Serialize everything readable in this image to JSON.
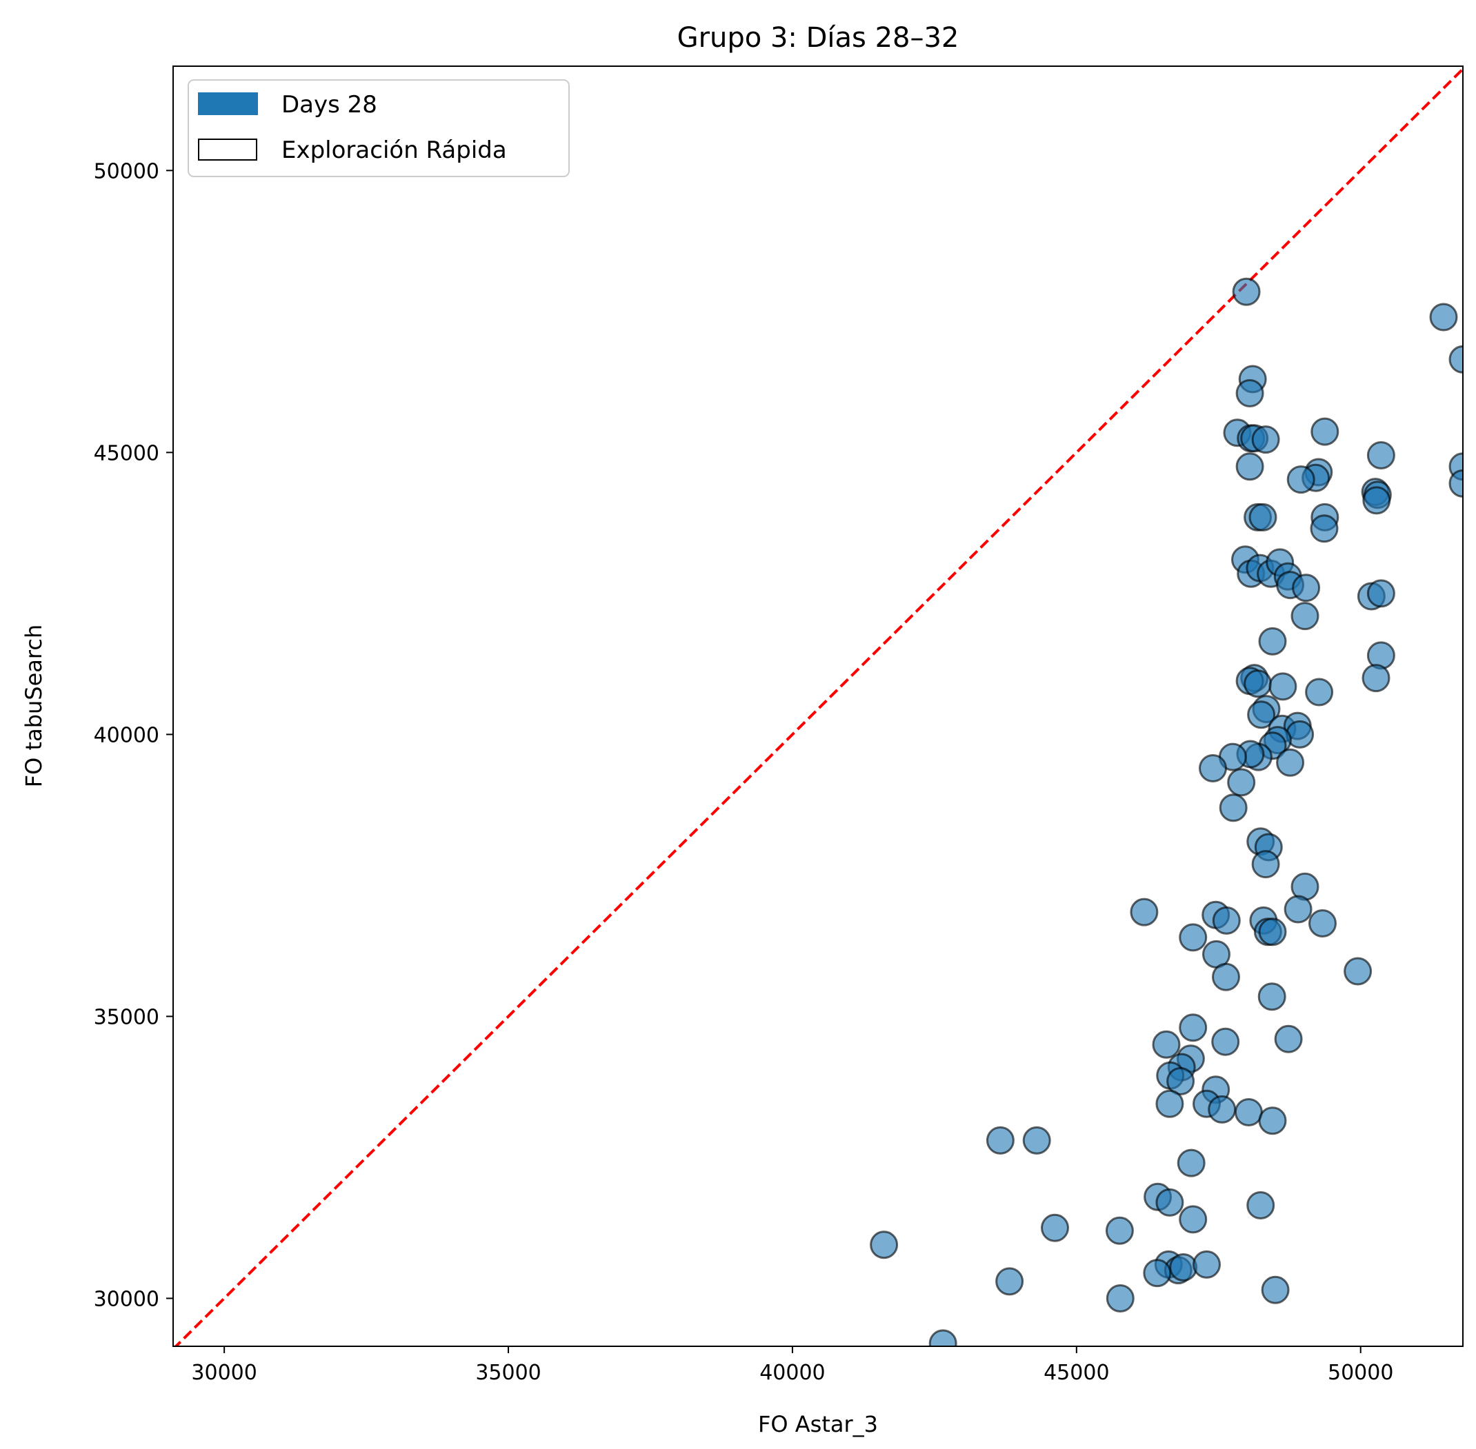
{
  "chart_data": {
    "type": "scatter",
    "title": "Grupo 3: Días 28–32",
    "xlabel": "FO Astar_3",
    "ylabel": "FO tabuSearch",
    "xlim": [
      29100,
      51800
    ],
    "ylim": [
      29150,
      51850
    ],
    "xticks": [
      30000,
      35000,
      40000,
      45000,
      50000
    ],
    "yticks": [
      30000,
      35000,
      40000,
      45000,
      50000
    ],
    "grid": false,
    "legend": {
      "placement": "top-left",
      "entries": [
        {
          "label": "Days 28",
          "style": "filled",
          "color": "#1f77b4"
        },
        {
          "label": "Exploración Rápida",
          "style": "outline",
          "color": "#000000"
        }
      ]
    },
    "reference_line": {
      "style": "dashed",
      "color": "#ff0000",
      "from": [
        29100,
        29100
      ],
      "to": [
        51800,
        51800
      ]
    },
    "series": [
      {
        "name": "Days 28",
        "color": "#1f77b4",
        "points": [
          [
            47990,
            47850
          ],
          [
            51460,
            47400
          ],
          [
            51800,
            46650
          ],
          [
            48100,
            46300
          ],
          [
            48050,
            46050
          ],
          [
            47830,
            45350
          ],
          [
            48070,
            45250
          ],
          [
            48130,
            45250
          ],
          [
            48330,
            45230
          ],
          [
            49370,
            45370
          ],
          [
            48050,
            44750
          ],
          [
            49260,
            44650
          ],
          [
            49210,
            44550
          ],
          [
            48950,
            44520
          ],
          [
            50360,
            44950
          ],
          [
            51800,
            44750
          ],
          [
            51800,
            44450
          ],
          [
            50260,
            44300
          ],
          [
            50300,
            44250
          ],
          [
            50280,
            44150
          ],
          [
            48190,
            43850
          ],
          [
            48280,
            43850
          ],
          [
            49370,
            43850
          ],
          [
            49360,
            43650
          ],
          [
            47970,
            43100
          ],
          [
            48070,
            42850
          ],
          [
            48230,
            42950
          ],
          [
            48420,
            42850
          ],
          [
            48580,
            43050
          ],
          [
            48720,
            42800
          ],
          [
            48760,
            42650
          ],
          [
            49040,
            42600
          ],
          [
            49020,
            42100
          ],
          [
            50190,
            42450
          ],
          [
            50360,
            42500
          ],
          [
            48450,
            41650
          ],
          [
            50360,
            41400
          ],
          [
            50270,
            41000
          ],
          [
            48130,
            41000
          ],
          [
            48050,
            40950
          ],
          [
            48190,
            40900
          ],
          [
            48340,
            40450
          ],
          [
            48250,
            40350
          ],
          [
            48630,
            40850
          ],
          [
            49270,
            40750
          ],
          [
            48620,
            40100
          ],
          [
            48890,
            40150
          ],
          [
            48930,
            40000
          ],
          [
            48540,
            39900
          ],
          [
            48450,
            39800
          ],
          [
            48760,
            39500
          ],
          [
            48200,
            39600
          ],
          [
            48060,
            39650
          ],
          [
            47750,
            39600
          ],
          [
            47400,
            39400
          ],
          [
            47900,
            39150
          ],
          [
            47760,
            38700
          ],
          [
            48240,
            38100
          ],
          [
            48380,
            38000
          ],
          [
            48330,
            37700
          ],
          [
            46190,
            36850
          ],
          [
            47450,
            36800
          ],
          [
            47640,
            36700
          ],
          [
            48290,
            36700
          ],
          [
            48370,
            36500
          ],
          [
            48450,
            36500
          ],
          [
            49020,
            37300
          ],
          [
            48900,
            36900
          ],
          [
            49330,
            36650
          ],
          [
            47050,
            36400
          ],
          [
            47460,
            36100
          ],
          [
            47630,
            35700
          ],
          [
            49950,
            35800
          ],
          [
            48440,
            35350
          ],
          [
            47050,
            34800
          ],
          [
            47620,
            34550
          ],
          [
            48730,
            34600
          ],
          [
            46580,
            34500
          ],
          [
            47010,
            34250
          ],
          [
            46850,
            34100
          ],
          [
            46650,
            33950
          ],
          [
            46830,
            33850
          ],
          [
            47450,
            33700
          ],
          [
            47290,
            33450
          ],
          [
            46640,
            33450
          ],
          [
            47560,
            33350
          ],
          [
            48030,
            33300
          ],
          [
            48450,
            33150
          ],
          [
            43660,
            32800
          ],
          [
            44300,
            32800
          ],
          [
            47020,
            32400
          ],
          [
            46430,
            31800
          ],
          [
            46640,
            31700
          ],
          [
            48240,
            31650
          ],
          [
            47050,
            31400
          ],
          [
            41610,
            30950
          ],
          [
            44620,
            31250
          ],
          [
            45760,
            31200
          ],
          [
            46620,
            30600
          ],
          [
            46790,
            30500
          ],
          [
            46880,
            30550
          ],
          [
            47290,
            30600
          ],
          [
            46420,
            30450
          ],
          [
            43820,
            30300
          ],
          [
            45770,
            30000
          ],
          [
            48500,
            30150
          ],
          [
            42650,
            29200
          ]
        ]
      }
    ]
  }
}
